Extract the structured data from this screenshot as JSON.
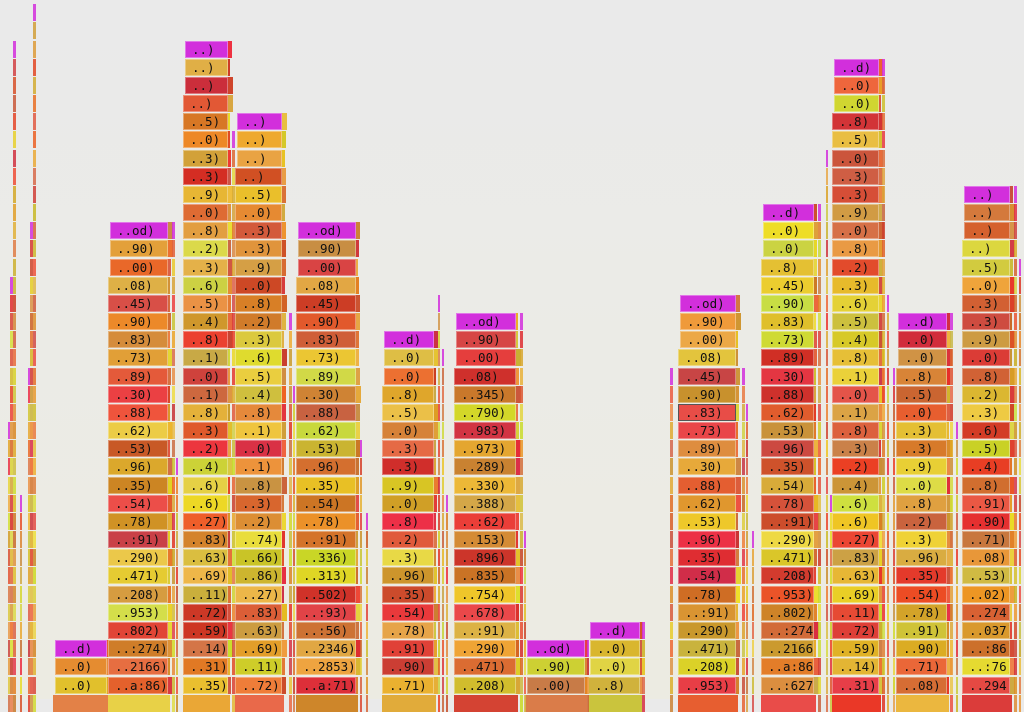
{
  "chart_data": {
    "type": "flamegraph",
    "title": "",
    "top_frame_color": "#d22fdc",
    "selected": {
      "column": 9,
      "label": "..83)"
    },
    "columns": [
      {
        "name": "A",
        "frames": [
          "..d)",
          "..0)",
          "..0)"
        ]
      },
      {
        "name": "B",
        "frames": [
          "..od)",
          "..90)",
          "..00)",
          "..08)",
          "..45)",
          "..90)",
          "..83)",
          "..73)",
          "..89)",
          "..30)",
          "..88)",
          "..62)",
          "..53)",
          "..96)",
          "..35)",
          "..54)",
          "..78)",
          "..:91)",
          "..290)",
          "..471)",
          "..208)",
          "..953)",
          "..802)",
          "..:274)",
          "..2166)",
          "..a:86)"
        ]
      },
      {
        "name": "C",
        "frames": [
          "..)",
          "..)",
          "..)",
          "..)",
          "..5)",
          "..0)",
          "..3)",
          "..3)",
          "..9)",
          "..0)",
          "..8)",
          "..2)",
          "..3)",
          "..6)",
          "..5)",
          "..4)",
          "..8)",
          "..1)",
          "..0)",
          "..1)",
          "..8)",
          "..3)",
          "..2)",
          "..4)",
          "..6)",
          "..6)",
          "..27)",
          "..83)",
          "..63)",
          "..69)",
          "..11)",
          "..72)",
          "..59)",
          "..14)",
          "..31)",
          "..35)"
        ]
      },
      {
        "name": "D",
        "frames": [
          "..)",
          "..)",
          "..)",
          "..)",
          "..5)",
          "..0)",
          "..3)",
          "..3)",
          "..9)",
          "..0)",
          "..8)",
          "..2)",
          "..3)",
          "..6)",
          "..5)",
          "..4)",
          "..8)",
          "..1)",
          "..0)",
          "..1)",
          "..8)",
          "..3)",
          "..2)",
          "..74)",
          "..66)",
          "..86)",
          "..27)",
          "..83)",
          "..63)",
          "..69)",
          "..11)",
          "..72)"
        ]
      },
      {
        "name": "E",
        "frames": [
          "..od)",
          "..90)",
          "..00)",
          "..08)",
          "..45)",
          "..90)",
          "..83)",
          "..73)",
          "..89)",
          "..30)",
          "..88)",
          "..62)",
          "..53)",
          "..96)",
          "..35)",
          "..54)",
          "..78)",
          "..:91)",
          "..336)",
          "..313)",
          "..502)",
          "..:93)",
          "..:56)",
          "..2346)",
          "..2853)",
          "..a:71)"
        ]
      },
      {
        "name": "F",
        "frames": [
          "..d)",
          "..0)",
          "..0)",
          "..8)",
          "..5)",
          "..0)",
          "..3)",
          "..3)",
          "..9)",
          "..0)",
          "..8)",
          "..2)",
          "..3)",
          "..96)",
          "..35)",
          "..54)",
          "..78)",
          "..91)",
          "..90)",
          "..71)"
        ]
      },
      {
        "name": "G",
        "frames": [
          "..od)",
          "..90)",
          "..00)",
          "..08)",
          "..345)",
          "..790)",
          "..983)",
          "..973)",
          "..289)",
          "..330)",
          "..388)",
          "..:62)",
          "..153)",
          "..896)",
          "..835)",
          "..754)",
          "..678)",
          "..:91)",
          "..290)",
          "..471)",
          "..208)"
        ]
      },
      {
        "name": "H",
        "frames": [
          "..od)",
          "..90)",
          "..00)"
        ]
      },
      {
        "name": "I",
        "frames": [
          "..d)",
          "..0)",
          "..0)",
          "..8)"
        ]
      },
      {
        "name": "J",
        "frames": [
          "..od)",
          "..90)",
          "..00)",
          "..08)",
          "..45)",
          "..90)",
          "..83)",
          "..73)",
          "..89)",
          "..30)",
          "..88)",
          "..62)",
          "..53)",
          "..96)",
          "..35)",
          "..54)",
          "..78)",
          "..:91)",
          "..290)",
          "..471)",
          "..208)",
          "..953)"
        ]
      },
      {
        "name": "K",
        "frames": [
          "..d)",
          "..0)",
          "..0)",
          "..8)",
          "..45)",
          "..90)",
          "..83)",
          "..73)",
          "..89)",
          "..30)",
          "..88)",
          "..62)",
          "..53)",
          "..96)",
          "..35)",
          "..54)",
          "..78)",
          "..:91)",
          "..290)",
          "..471)",
          "..208)",
          "..953)",
          "..802)",
          "..:274)",
          "..2166)",
          "..a:86)",
          "..:627)"
        ]
      },
      {
        "name": "L",
        "frames": [
          "..d)",
          "..0)",
          "..0)",
          "..8)",
          "..5)",
          "..0)",
          "..3)",
          "..3)",
          "..9)",
          "..0)",
          "..8)",
          "..2)",
          "..3)",
          "..6)",
          "..5)",
          "..4)",
          "..8)",
          "..1)",
          "..0)",
          "..1)",
          "..8)",
          "..3)",
          "..2)",
          "..4)",
          "..6)",
          "..6)",
          "..27)",
          "..83)",
          "..63)",
          "..69)",
          "..11)",
          "..72)",
          "..59)",
          "..14)",
          "..31)"
        ]
      },
      {
        "name": "M",
        "frames": [
          "..d)",
          "..0)",
          "..0)",
          "..8)",
          "..5)",
          "..0)",
          "..3)",
          "..3)",
          "..9)",
          "..0)",
          "..8)",
          "..2)",
          "..3)",
          "..96)",
          "..35)",
          "..54)",
          "..78)",
          "..91)",
          "..90)",
          "..71)",
          "..08)"
        ]
      },
      {
        "name": "N",
        "frames": [
          "..)",
          "..)",
          "..)",
          "..)",
          "..5)",
          "..0)",
          "..3)",
          "..3)",
          "..9)",
          "..0)",
          "..8)",
          "..2)",
          "..3)",
          "..6)",
          "..5)",
          "..4)",
          "..8)",
          "..91)",
          "..90)",
          "..71)",
          "..08)",
          "..53)",
          "..02)",
          "..274)",
          "..037)",
          "..:86)",
          "..:76)",
          "..294)"
        ]
      }
    ]
  }
}
